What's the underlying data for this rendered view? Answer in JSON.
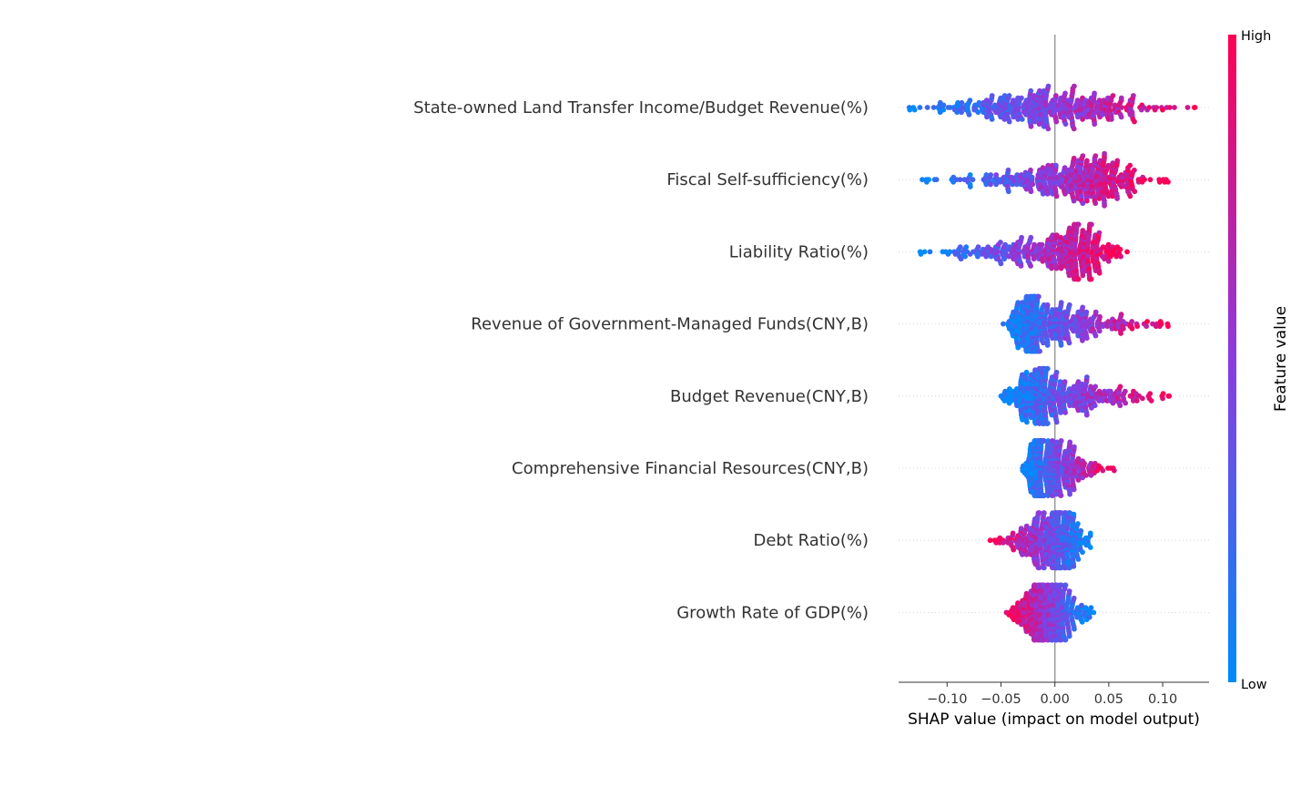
{
  "chart_data": {
    "type": "scatter",
    "subtype": "shap-beeswarm",
    "title": "",
    "xlabel": "SHAP value (impact on model output)",
    "ylabel": "",
    "xlim": [
      -0.145,
      0.143
    ],
    "xticks": [
      -0.1,
      -0.05,
      0.0,
      0.05,
      0.1
    ],
    "xtick_labels": [
      "−0.10",
      "−0.05",
      "0.00",
      "0.05",
      "0.10"
    ],
    "zero_line": true,
    "grid": false,
    "colorbar": {
      "title": "Feature value",
      "high_label": "High",
      "low_label": "Low",
      "low_color": "#008bfb",
      "high_color": "#ff0052"
    },
    "features": [
      {
        "name": "State-owned Land Transfer Income/Budget Revenue(%)",
        "min": -0.135,
        "max": 0.13,
        "center": -0.005
      },
      {
        "name": "Fiscal Self-sufficiency(%)",
        "min": -0.123,
        "max": 0.105,
        "center": 0.02
      },
      {
        "name": "Liability Ratio(%)",
        "min": -0.125,
        "max": 0.067,
        "center": 0.01
      },
      {
        "name": "Revenue of Government-Managed Funds(CNY,B)",
        "min": -0.048,
        "max": 0.105,
        "center": -0.015
      },
      {
        "name": "Budget Revenue(CNY,B)",
        "min": -0.05,
        "max": 0.106,
        "center": -0.008
      },
      {
        "name": "Comprehensive Financial Resources(CNY,B)",
        "min": -0.03,
        "max": 0.055,
        "center": -0.01
      },
      {
        "name": "Debt Ratio(%)",
        "min": -0.06,
        "max": 0.033,
        "center": 0.0
      },
      {
        "name": "Growth Rate of GDP(%)",
        "min": -0.045,
        "max": 0.036,
        "center": -0.008
      }
    ]
  }
}
